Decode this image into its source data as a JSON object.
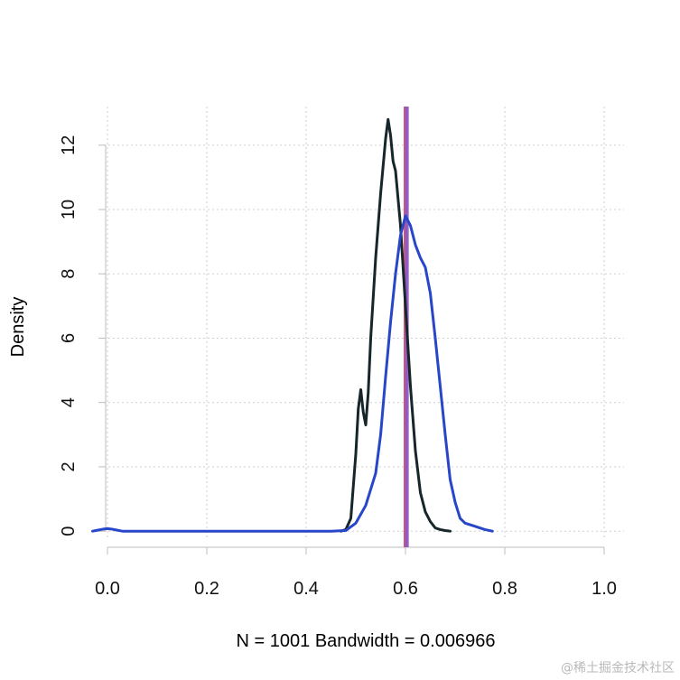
{
  "chart_data": {
    "type": "line",
    "title": "",
    "xlabel": "N = 1001   Bandwidth = 0.006966",
    "ylabel": "Density",
    "xlim": [
      -0.04,
      1.04
    ],
    "ylim": [
      -0.5,
      13.2
    ],
    "x_ticks": [
      0.0,
      0.2,
      0.4,
      0.6,
      0.8,
      1.0
    ],
    "x_tick_labels": [
      "0.0",
      "0.2",
      "0.4",
      "0.6",
      "0.8",
      "1.0"
    ],
    "y_ticks": [
      0,
      2,
      4,
      6,
      8,
      10,
      12
    ],
    "y_tick_labels": [
      "0",
      "2",
      "4",
      "6",
      "8",
      "10",
      "12"
    ],
    "grid": true,
    "series": [
      {
        "color": "#17262b",
        "x": [
          0.47,
          0.48,
          0.49,
          0.5,
          0.505,
          0.51,
          0.515,
          0.52,
          0.525,
          0.53,
          0.54,
          0.55,
          0.56,
          0.565,
          0.57,
          0.575,
          0.58,
          0.59,
          0.6,
          0.61,
          0.62,
          0.63,
          0.64,
          0.65,
          0.66,
          0.67,
          0.68,
          0.69
        ],
        "values": [
          0.0,
          0.05,
          0.4,
          2.4,
          3.8,
          4.4,
          3.7,
          3.3,
          4.3,
          6.0,
          8.5,
          10.5,
          12.2,
          12.8,
          12.3,
          11.5,
          11.2,
          9.5,
          7.0,
          4.5,
          2.5,
          1.2,
          0.6,
          0.3,
          0.1,
          0.05,
          0.02,
          0.0
        ]
      },
      {
        "color": "#2846c9",
        "x": [
          -0.03,
          -0.02,
          -0.01,
          0.0,
          0.01,
          0.02,
          0.03,
          0.05,
          0.1,
          0.2,
          0.3,
          0.4,
          0.45,
          0.48,
          0.5,
          0.52,
          0.54,
          0.55,
          0.56,
          0.57,
          0.58,
          0.59,
          0.6,
          0.61,
          0.62,
          0.63,
          0.64,
          0.65,
          0.66,
          0.67,
          0.68,
          0.69,
          0.7,
          0.71,
          0.72,
          0.74,
          0.76,
          0.775
        ],
        "values": [
          0.0,
          0.03,
          0.06,
          0.08,
          0.06,
          0.03,
          0.0,
          0.0,
          0.0,
          0.0,
          0.0,
          0.0,
          0.0,
          0.02,
          0.25,
          0.8,
          1.8,
          3.0,
          4.8,
          6.5,
          8.0,
          9.2,
          9.8,
          9.5,
          8.9,
          8.5,
          8.2,
          7.4,
          6.0,
          4.5,
          3.0,
          1.6,
          0.9,
          0.4,
          0.25,
          0.15,
          0.05,
          0.0
        ]
      }
    ],
    "vlines": [
      {
        "x": 0.6,
        "color": "#d04d6a"
      },
      {
        "x": 0.603,
        "color": "#8e5bc4"
      }
    ]
  },
  "watermark": "@稀土掘金技术社区"
}
